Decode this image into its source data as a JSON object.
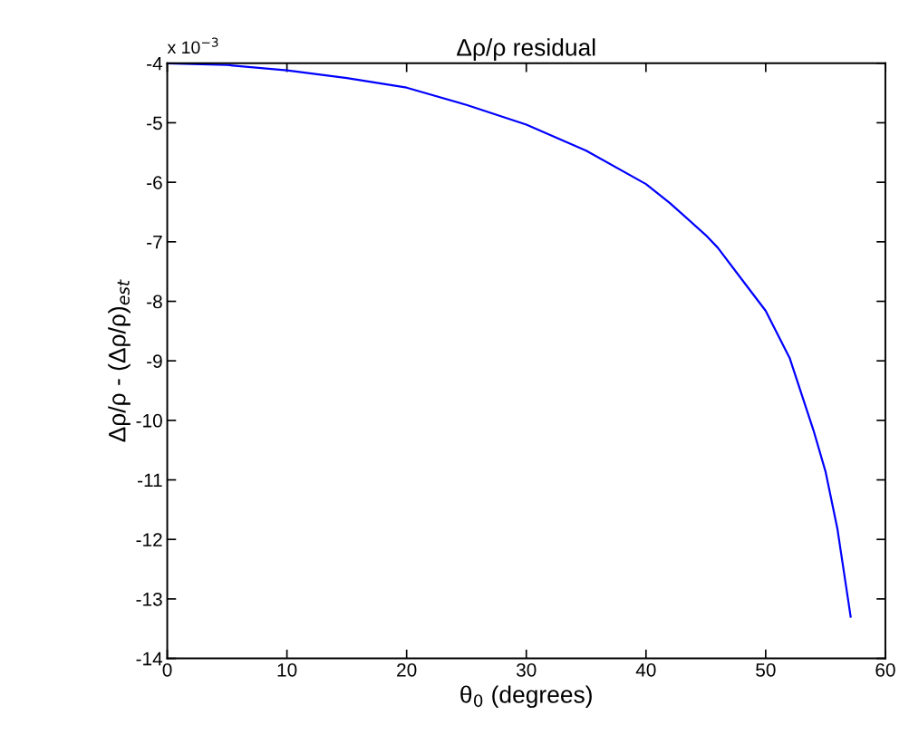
{
  "chart_data": {
    "type": "line",
    "title": "Δρ/ρ residual",
    "xlabel": "θ$_{0}$ (degrees)",
    "ylabel": "Δρ/ρ - (Δρ/ρ)$_{est}$",
    "annotations": [
      "x 10$^{−3}$"
    ],
    "xlim": [
      0,
      60
    ],
    "xticks": [
      0,
      10,
      20,
      30,
      40,
      50,
      60
    ],
    "ylim": [
      -14,
      -4
    ],
    "yticks": [
      -14,
      -13,
      -12,
      -11,
      -10,
      -9,
      -8,
      -7,
      -6,
      -5,
      -4
    ],
    "grid": false,
    "legend": false,
    "marker": "none",
    "line_style": "solid",
    "series": [
      {
        "color": "#0000ff",
        "x": [
          0,
          5,
          10,
          15,
          20,
          25,
          30,
          35,
          40,
          42,
          45,
          46,
          48,
          50,
          52,
          54,
          55,
          56,
          57.1
        ],
        "values": [
          -4.0,
          -4.03,
          -4.12,
          -4.25,
          -4.41,
          -4.7,
          -5.03,
          -5.47,
          -6.03,
          -6.35,
          -6.89,
          -7.1,
          -7.63,
          -8.16,
          -8.95,
          -10.17,
          -10.86,
          -11.83,
          -13.3
        ]
      }
    ]
  }
}
